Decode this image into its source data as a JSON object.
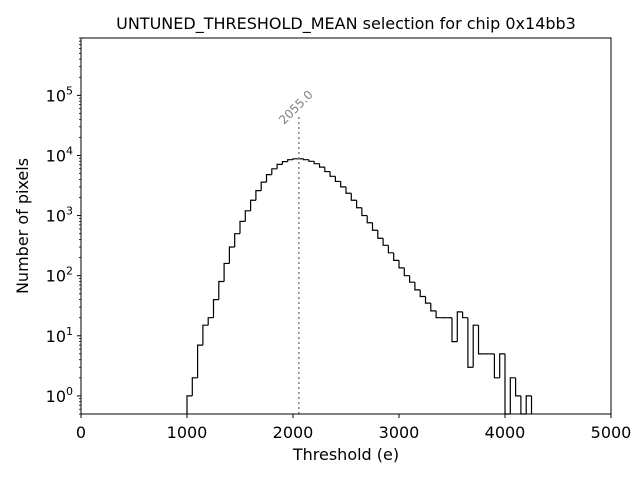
{
  "chart_data": {
    "type": "histogram",
    "title": "UNTUNED_THRESHOLD_MEAN selection for chip 0x14bb3",
    "xlabel": "Threshold (e)",
    "ylabel": "Number of pixels",
    "xlim": [
      0,
      5000
    ],
    "ylim": [
      0.5,
      900000
    ],
    "yscale": "log",
    "x_ticks": [
      0,
      1000,
      2000,
      3000,
      4000,
      5000
    ],
    "x_tick_labels": [
      "0",
      "1000",
      "2000",
      "3000",
      "4000",
      "5000"
    ],
    "y_ticks": [
      1,
      10,
      100,
      1000,
      10000,
      100000
    ],
    "y_tick_labels": [
      "10^0",
      "10^1",
      "10^2",
      "10^3",
      "10^4",
      "10^5"
    ],
    "bin_width": 50,
    "bin_start": 1000,
    "counts": [
      1,
      2,
      7,
      15,
      20,
      40,
      80,
      160,
      300,
      500,
      800,
      1200,
      1800,
      2600,
      3600,
      4800,
      6000,
      7100,
      7900,
      8500,
      8800,
      8800,
      8500,
      8000,
      7300,
      6400,
      5400,
      4500,
      3700,
      3000,
      2350,
      1800,
      1350,
      1000,
      760,
      570,
      420,
      320,
      240,
      180,
      135,
      100,
      78,
      58,
      45,
      35,
      26,
      20,
      20,
      20,
      8,
      25,
      20,
      3,
      15,
      5,
      5,
      5,
      2,
      5,
      0,
      2,
      1,
      0,
      1
    ],
    "annotation": {
      "value": 2055.0,
      "text": "2055.0",
      "line_top": 45000,
      "color": "#808080"
    },
    "colors": {
      "line": "#000000",
      "marker": "#808080"
    }
  }
}
